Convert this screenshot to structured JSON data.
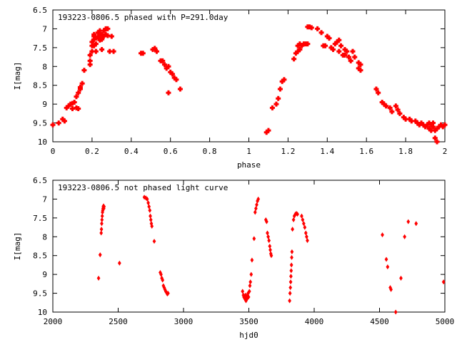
{
  "chart_data": [
    {
      "type": "scatter",
      "title": "193223-0806.5 phased with P=291.0day",
      "xlabel": "phase",
      "ylabel": "I[mag]",
      "xlim": [
        0,
        2
      ],
      "ylim": [
        6.5,
        10
      ],
      "y_inverted": true,
      "grid": false,
      "marker_color": "#ff0000",
      "marker": "plus",
      "xticks": [
        0,
        0.2,
        0.4,
        0.6,
        0.8,
        1,
        1.2,
        1.4,
        1.6,
        1.8,
        2
      ],
      "xtick_labels": [
        "0",
        "0.2",
        "0.4",
        "0.6",
        "0.8",
        "1",
        "1.2",
        "1.4",
        "1.6",
        "1.8",
        "2"
      ],
      "yticks": [
        6.5,
        7,
        7.5,
        8,
        8.5,
        9,
        9.5,
        10
      ],
      "ytick_labels": [
        "6.5",
        "7",
        "7.5",
        "8",
        "8.5",
        "9",
        "9.5",
        "10"
      ],
      "points": [
        [
          0.0,
          9.55
        ],
        [
          0.03,
          9.5
        ],
        [
          0.05,
          9.4
        ],
        [
          0.06,
          9.45
        ],
        [
          0.07,
          9.1
        ],
        [
          0.08,
          9.05
        ],
        [
          0.09,
          9.0
        ],
        [
          0.1,
          8.98
        ],
        [
          0.1,
          9.12
        ],
        [
          0.11,
          8.95
        ],
        [
          0.12,
          8.8
        ],
        [
          0.12,
          9.1
        ],
        [
          0.13,
          8.7
        ],
        [
          0.14,
          8.6
        ],
        [
          0.14,
          8.55
        ],
        [
          0.13,
          9.12
        ],
        [
          0.15,
          8.45
        ],
        [
          0.16,
          8.1
        ],
        [
          0.19,
          7.85
        ],
        [
          0.19,
          7.95
        ],
        [
          0.19,
          7.7
        ],
        [
          0.2,
          7.6
        ],
        [
          0.2,
          7.45
        ],
        [
          0.2,
          7.35
        ],
        [
          0.21,
          7.45
        ],
        [
          0.21,
          7.28
        ],
        [
          0.21,
          7.2
        ],
        [
          0.21,
          7.15
        ],
        [
          0.22,
          7.6
        ],
        [
          0.22,
          7.4
        ],
        [
          0.22,
          7.25
        ],
        [
          0.23,
          7.1
        ],
        [
          0.23,
          7.22
        ],
        [
          0.24,
          7.18
        ],
        [
          0.24,
          7.05
        ],
        [
          0.24,
          7.3
        ],
        [
          0.25,
          7.28
        ],
        [
          0.25,
          7.15
        ],
        [
          0.25,
          7.55
        ],
        [
          0.26,
          7.2
        ],
        [
          0.26,
          7.05
        ],
        [
          0.27,
          7.0
        ],
        [
          0.27,
          7.15
        ],
        [
          0.28,
          7.0
        ],
        [
          0.28,
          7.18
        ],
        [
          0.29,
          7.6
        ],
        [
          0.3,
          7.2
        ],
        [
          0.31,
          7.6
        ],
        [
          0.45,
          7.65
        ],
        [
          0.46,
          7.65
        ],
        [
          0.51,
          7.55
        ],
        [
          0.52,
          7.52
        ],
        [
          0.53,
          7.6
        ],
        [
          0.55,
          7.85
        ],
        [
          0.56,
          7.85
        ],
        [
          0.57,
          7.95
        ],
        [
          0.58,
          8.05
        ],
        [
          0.59,
          8.0
        ],
        [
          0.59,
          8.7
        ],
        [
          0.6,
          8.15
        ],
        [
          0.61,
          8.2
        ],
        [
          0.62,
          8.3
        ],
        [
          0.63,
          8.35
        ],
        [
          0.65,
          8.6
        ],
        [
          1.09,
          9.75
        ],
        [
          1.1,
          9.7
        ],
        [
          1.12,
          9.1
        ],
        [
          1.14,
          9.0
        ],
        [
          1.15,
          8.85
        ],
        [
          1.16,
          8.6
        ],
        [
          1.17,
          8.4
        ],
        [
          1.18,
          8.35
        ],
        [
          1.23,
          7.8
        ],
        [
          1.24,
          7.65
        ],
        [
          1.25,
          7.6
        ],
        [
          1.25,
          7.45
        ],
        [
          1.26,
          7.55
        ],
        [
          1.26,
          7.4
        ],
        [
          1.27,
          7.45
        ],
        [
          1.28,
          7.4
        ],
        [
          1.29,
          7.4
        ],
        [
          1.3,
          6.95
        ],
        [
          1.3,
          7.4
        ],
        [
          1.31,
          6.95
        ],
        [
          1.32,
          6.97
        ],
        [
          1.35,
          7.0
        ],
        [
          1.37,
          7.1
        ],
        [
          1.38,
          7.45
        ],
        [
          1.39,
          7.45
        ],
        [
          1.4,
          7.2
        ],
        [
          1.41,
          7.25
        ],
        [
          1.42,
          7.5
        ],
        [
          1.43,
          7.55
        ],
        [
          1.44,
          7.4
        ],
        [
          1.45,
          7.35
        ],
        [
          1.46,
          7.3
        ],
        [
          1.46,
          7.6
        ],
        [
          1.47,
          7.45
        ],
        [
          1.48,
          7.7
        ],
        [
          1.49,
          7.55
        ],
        [
          1.49,
          7.7
        ],
        [
          1.5,
          7.6
        ],
        [
          1.51,
          7.75
        ],
        [
          1.52,
          7.85
        ],
        [
          1.53,
          7.6
        ],
        [
          1.54,
          7.75
        ],
        [
          1.56,
          7.9
        ],
        [
          1.56,
          8.05
        ],
        [
          1.57,
          8.1
        ],
        [
          1.57,
          7.95
        ],
        [
          1.65,
          8.6
        ],
        [
          1.66,
          8.7
        ],
        [
          1.68,
          8.95
        ],
        [
          1.69,
          9.0
        ],
        [
          1.7,
          9.05
        ],
        [
          1.72,
          9.1
        ],
        [
          1.73,
          9.2
        ],
        [
          1.75,
          9.05
        ],
        [
          1.76,
          9.15
        ],
        [
          1.77,
          9.25
        ],
        [
          1.79,
          9.35
        ],
        [
          1.8,
          9.4
        ],
        [
          1.82,
          9.4
        ],
        [
          1.83,
          9.45
        ],
        [
          1.85,
          9.45
        ],
        [
          1.86,
          9.5
        ],
        [
          1.87,
          9.55
        ],
        [
          1.88,
          9.5
        ],
        [
          1.89,
          9.55
        ],
        [
          1.9,
          9.6
        ],
        [
          1.91,
          9.55
        ],
        [
          1.92,
          9.65
        ],
        [
          1.92,
          9.5
        ],
        [
          1.93,
          9.7
        ],
        [
          1.93,
          9.55
        ],
        [
          1.94,
          9.6
        ],
        [
          1.94,
          9.5
        ],
        [
          1.95,
          9.7
        ],
        [
          1.95,
          9.9
        ],
        [
          1.96,
          9.65
        ],
        [
          1.96,
          10.0
        ],
        [
          1.97,
          9.6
        ],
        [
          1.98,
          9.55
        ],
        [
          1.99,
          9.6
        ],
        [
          2.0,
          9.55
        ]
      ]
    },
    {
      "type": "scatter",
      "title": "193223-0806.5 not phased light curve",
      "xlabel": "hjd0",
      "ylabel": "I[mag]",
      "xlim": [
        2000,
        5000
      ],
      "ylim": [
        6.5,
        10
      ],
      "y_inverted": true,
      "grid": false,
      "marker_color": "#ff0000",
      "marker": "diamond",
      "xticks": [
        2000,
        2500,
        3000,
        3500,
        4000,
        4500,
        5000
      ],
      "xtick_labels": [
        "2000",
        "2500",
        "3000",
        "3500",
        "4000",
        "4500",
        "5000"
      ],
      "yticks": [
        6.5,
        7,
        7.5,
        8,
        8.5,
        9,
        9.5,
        10
      ],
      "ytick_labels": [
        "6.5",
        "7",
        "7.5",
        "8",
        "8.5",
        "9",
        "9.5",
        "10"
      ],
      "points": [
        [
          2350,
          9.1
        ],
        [
          2362,
          8.48
        ],
        [
          2370,
          7.9
        ],
        [
          2372,
          7.8
        ],
        [
          2374,
          7.65
        ],
        [
          2376,
          7.55
        ],
        [
          2378,
          7.45
        ],
        [
          2380,
          7.35
        ],
        [
          2382,
          7.3
        ],
        [
          2384,
          7.25
        ],
        [
          2386,
          7.2
        ],
        [
          2388,
          7.18
        ],
        [
          2390,
          7.25
        ],
        [
          2392,
          7.2
        ],
        [
          2510,
          8.7
        ],
        [
          2700,
          6.95
        ],
        [
          2712,
          6.97
        ],
        [
          2722,
          7.0
        ],
        [
          2730,
          7.1
        ],
        [
          2736,
          7.2
        ],
        [
          2742,
          7.3
        ],
        [
          2746,
          7.45
        ],
        [
          2750,
          7.55
        ],
        [
          2754,
          7.65
        ],
        [
          2758,
          7.72
        ],
        [
          2776,
          8.12
        ],
        [
          2822,
          8.95
        ],
        [
          2828,
          9.0
        ],
        [
          2834,
          9.1
        ],
        [
          2840,
          9.15
        ],
        [
          2846,
          9.3
        ],
        [
          2852,
          9.35
        ],
        [
          2858,
          9.4
        ],
        [
          2864,
          9.45
        ],
        [
          2870,
          9.48
        ],
        [
          2876,
          9.52
        ],
        [
          2882,
          9.5
        ],
        [
          3452,
          9.45
        ],
        [
          3458,
          9.55
        ],
        [
          3462,
          9.6
        ],
        [
          3466,
          9.62
        ],
        [
          3470,
          9.65
        ],
        [
          3474,
          9.55
        ],
        [
          3478,
          9.7
        ],
        [
          3482,
          9.6
        ],
        [
          3486,
          9.65
        ],
        [
          3490,
          9.55
        ],
        [
          3494,
          9.5
        ],
        [
          3498,
          9.6
        ],
        [
          3504,
          9.45
        ],
        [
          3508,
          9.3
        ],
        [
          3512,
          9.2
        ],
        [
          3518,
          9.0
        ],
        [
          3524,
          8.62
        ],
        [
          3540,
          8.05
        ],
        [
          3548,
          7.35
        ],
        [
          3554,
          7.25
        ],
        [
          3560,
          7.15
        ],
        [
          3566,
          7.05
        ],
        [
          3572,
          7.0
        ],
        [
          3630,
          7.55
        ],
        [
          3636,
          7.6
        ],
        [
          3642,
          7.9
        ],
        [
          3648,
          8.0
        ],
        [
          3654,
          8.1
        ],
        [
          3660,
          8.25
        ],
        [
          3664,
          8.35
        ],
        [
          3668,
          8.45
        ],
        [
          3672,
          8.5
        ],
        [
          3812,
          9.7
        ],
        [
          3815,
          9.5
        ],
        [
          3818,
          9.35
        ],
        [
          3820,
          9.2
        ],
        [
          3822,
          9.05
        ],
        [
          3824,
          8.9
        ],
        [
          3826,
          8.75
        ],
        [
          3828,
          8.55
        ],
        [
          3830,
          8.4
        ],
        [
          3834,
          7.8
        ],
        [
          3842,
          7.55
        ],
        [
          3848,
          7.45
        ],
        [
          3856,
          7.4
        ],
        [
          3864,
          7.38
        ],
        [
          3872,
          7.4
        ],
        [
          3904,
          7.45
        ],
        [
          3912,
          7.55
        ],
        [
          3920,
          7.65
        ],
        [
          3928,
          7.75
        ],
        [
          3936,
          7.9
        ],
        [
          3942,
          8.0
        ],
        [
          3948,
          8.1
        ],
        [
          4522,
          7.95
        ],
        [
          4552,
          8.6
        ],
        [
          4562,
          8.8
        ],
        [
          4582,
          9.35
        ],
        [
          4588,
          9.4
        ],
        [
          4624,
          10.0
        ],
        [
          4664,
          9.1
        ],
        [
          4692,
          8.0
        ],
        [
          4720,
          7.6
        ],
        [
          4780,
          7.65
        ],
        [
          4990,
          9.2
        ]
      ]
    }
  ]
}
